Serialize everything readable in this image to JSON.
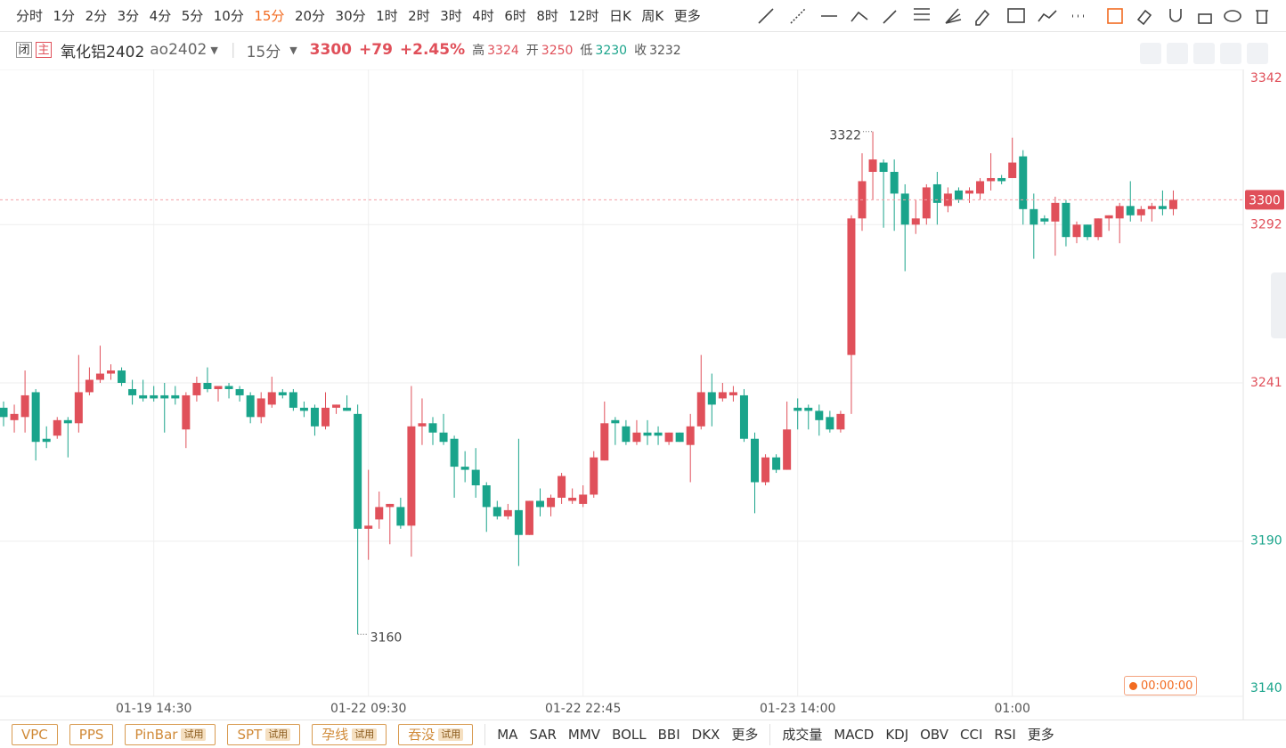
{
  "toolbar": {
    "periods": [
      "分时",
      "1分",
      "2分",
      "3分",
      "4分",
      "5分",
      "10分",
      "15分",
      "20分",
      "30分",
      "1时",
      "2时",
      "3时",
      "4时",
      "6时",
      "8时",
      "12时",
      "日K",
      "周K",
      "更多"
    ],
    "active_index": 7
  },
  "header": {
    "badges": [
      "闭",
      "主"
    ],
    "name": "氧化铝2402",
    "code": "ao2402",
    "period": "15分",
    "price": 3300,
    "change": "+79",
    "change_pct": "+2.45%",
    "stats": [
      {
        "label": "高",
        "value": 3324
      },
      {
        "label": "开",
        "value": 3250
      },
      {
        "label": "低",
        "value": 3230
      },
      {
        "label": "收",
        "value": 3232
      }
    ]
  },
  "chart_data": {
    "type": "candlestick",
    "categories": [
      null,
      null,
      null,
      null,
      null,
      null,
      null,
      null,
      null,
      null,
      null,
      null,
      null,
      null,
      "01-19 14:30",
      null,
      null,
      null,
      null,
      null,
      null,
      null,
      null,
      null,
      null,
      null,
      null,
      null,
      null,
      null,
      null,
      null,
      null,
      null,
      "01-22 09:30",
      null,
      null,
      null,
      null,
      null,
      null,
      null,
      null,
      null,
      null,
      null,
      null,
      null,
      null,
      null,
      null,
      null,
      null,
      null,
      "01-22 22:45",
      null,
      null,
      null,
      null,
      null,
      null,
      null,
      null,
      null,
      null,
      null,
      null,
      null,
      null,
      null,
      null,
      null,
      null,
      null,
      "01-23 14:00",
      null,
      null,
      null,
      null,
      null,
      null,
      null,
      null,
      null,
      null,
      null,
      null,
      null,
      null,
      null,
      null,
      null,
      null,
      null,
      "01:00",
      null,
      null,
      null,
      null,
      null,
      null,
      null,
      null,
      null,
      null,
      null,
      null,
      null,
      null,
      null
    ],
    "open": [
      3233,
      3229,
      3230,
      3238,
      3223,
      3224,
      3229,
      3228,
      3238,
      3242,
      3244,
      3245,
      3239,
      3237,
      3237,
      3237,
      3237,
      3226,
      3237,
      3241,
      3239,
      3240,
      3239,
      3237,
      3230,
      3234,
      3238,
      3238,
      3233,
      3233,
      3227,
      3233,
      3233,
      3231,
      3194,
      3197,
      3201,
      3201,
      3195,
      3227,
      3228,
      3225,
      3223,
      3214,
      3213,
      3208,
      3201,
      3198,
      3200,
      3192,
      3203,
      3201,
      3204,
      3203,
      3202,
      3205,
      3216,
      3229,
      3227,
      3222,
      3225,
      3225,
      3222,
      3225,
      3221,
      3227,
      3238,
      3236,
      3237,
      3237,
      3223,
      3209,
      3217,
      3213,
      3233,
      3233,
      3232,
      3230,
      3226,
      3250,
      3294,
      3309,
      3312,
      3309,
      3302,
      3292,
      3294,
      3305,
      3298,
      3303,
      3302,
      3302,
      3306,
      3307,
      3307,
      3314,
      3297,
      3294,
      3293,
      3299,
      3288,
      3292,
      3288,
      3294,
      3294,
      3298,
      3295,
      3297,
      3298,
      3297
    ],
    "high": [
      3235,
      3234,
      3245,
      3239,
      3227,
      3230,
      3230,
      3250,
      3246,
      3253,
      3247,
      3246,
      3242,
      3242,
      3240,
      3241,
      3240,
      3238,
      3243,
      3246,
      3240,
      3241,
      3240,
      3238,
      3238,
      3243,
      3239,
      3239,
      3235,
      3234,
      3238,
      3234,
      3237,
      3234,
      3213,
      3206,
      3202,
      3204,
      3240,
      3236,
      3230,
      3231,
      3224,
      3219,
      3220,
      3209,
      3203,
      3202,
      3223,
      3203,
      3207,
      3205,
      3212,
      3207,
      3208,
      3219,
      3235,
      3230,
      3229,
      3229,
      3229,
      3227,
      3225,
      3225,
      3231,
      3250,
      3244,
      3241,
      3240,
      3239,
      3225,
      3218,
      3218,
      3235,
      3236,
      3234,
      3234,
      3232,
      3232,
      3295,
      3315,
      3322,
      3313,
      3313,
      3305,
      3300,
      3305,
      3309,
      3304,
      3304,
      3304,
      3307,
      3315,
      3308,
      3320,
      3316,
      3302,
      3295,
      3301,
      3300,
      3293,
      3292,
      3294,
      3295,
      3299,
      3306,
      3298,
      3299,
      3303,
      3303
    ],
    "low": [
      3227,
      3225,
      3225,
      3216,
      3220,
      3223,
      3217,
      3225,
      3237,
      3241,
      3242,
      3240,
      3234,
      3235,
      3235,
      3225,
      3234,
      3220,
      3235,
      3238,
      3235,
      3236,
      3235,
      3228,
      3228,
      3233,
      3236,
      3232,
      3230,
      3224,
      3226,
      3231,
      3232,
      3160,
      3184,
      3194,
      3189,
      3194,
      3185,
      3221,
      3221,
      3221,
      3204,
      3209,
      3204,
      3193,
      3197,
      3197,
      3182,
      3192,
      3198,
      3198,
      3202,
      3202,
      3201,
      3204,
      3216,
      3221,
      3221,
      3221,
      3221,
      3221,
      3221,
      3222,
      3209,
      3226,
      3227,
      3235,
      3235,
      3222,
      3199,
      3208,
      3212,
      3213,
      3226,
      3226,
      3224,
      3225,
      3225,
      3231,
      3290,
      3300,
      3291,
      3290,
      3277,
      3289,
      3292,
      3292,
      3296,
      3299,
      3299,
      3300,
      3303,
      3305,
      3307,
      3292,
      3281,
      3292,
      3282,
      3285,
      3286,
      3287,
      3287,
      3290,
      3286,
      3293,
      3293,
      3293,
      3295,
      3295
    ],
    "close": [
      3230,
      3231,
      3237,
      3222,
      3222,
      3229,
      3228,
      3238,
      3242,
      3244,
      3245,
      3241,
      3237,
      3236,
      3236,
      3236,
      3236,
      3237,
      3241,
      3239,
      3240,
      3239,
      3237,
      3230,
      3236,
      3238,
      3237,
      3233,
      3232,
      3227,
      3233,
      3234,
      3232,
      3194,
      3195,
      3201,
      3202,
      3195,
      3227,
      3228,
      3225,
      3222,
      3214,
      3213,
      3208,
      3201,
      3198,
      3200,
      3192,
      3203,
      3201,
      3204,
      3211,
      3204,
      3205,
      3217,
      3228,
      3228,
      3222,
      3225,
      3224,
      3224,
      3225,
      3222,
      3227,
      3238,
      3234,
      3238,
      3238,
      3223,
      3209,
      3217,
      3213,
      3226,
      3232,
      3232,
      3229,
      3226,
      3231,
      3294,
      3306,
      3313,
      3309,
      3302,
      3292,
      3294,
      3304,
      3299,
      3302,
      3300,
      3303,
      3306,
      3307,
      3306,
      3312,
      3297,
      3292,
      3293,
      3299,
      3288,
      3292,
      3288,
      3294,
      3295,
      3298,
      3295,
      3297,
      3298,
      3297,
      3300
    ],
    "up_color": "#e0505a",
    "down_color": "#1aa48b",
    "ylim": [
      3140,
      3342
    ],
    "yticks": [
      3140,
      3190,
      3241,
      3292,
      3342
    ],
    "ytick_colors": [
      "#1aa48b",
      "#1aa48b",
      "#e0505a",
      "#e0505a",
      "#e0505a"
    ],
    "grid": true,
    "current_price": 3300,
    "annotations": [
      3322,
      3160
    ]
  },
  "footer": {
    "timer": "00:00:00",
    "patterns": [
      {
        "name": "VPC"
      },
      {
        "name": "PPS"
      },
      {
        "name": "PinBar",
        "tag": "试用"
      },
      {
        "name": "SPT",
        "tag": "试用"
      },
      {
        "name": "孕线",
        "tag": "试用"
      },
      {
        "name": "吞没",
        "tag": "试用"
      }
    ],
    "main_indicators": [
      "MA",
      "SAR",
      "MMV",
      "BOLL",
      "BBI",
      "DKX",
      "更多"
    ],
    "sub_indicators": [
      "成交量",
      "MACD",
      "KDJ",
      "OBV",
      "CCI",
      "RSI",
      "更多"
    ]
  }
}
